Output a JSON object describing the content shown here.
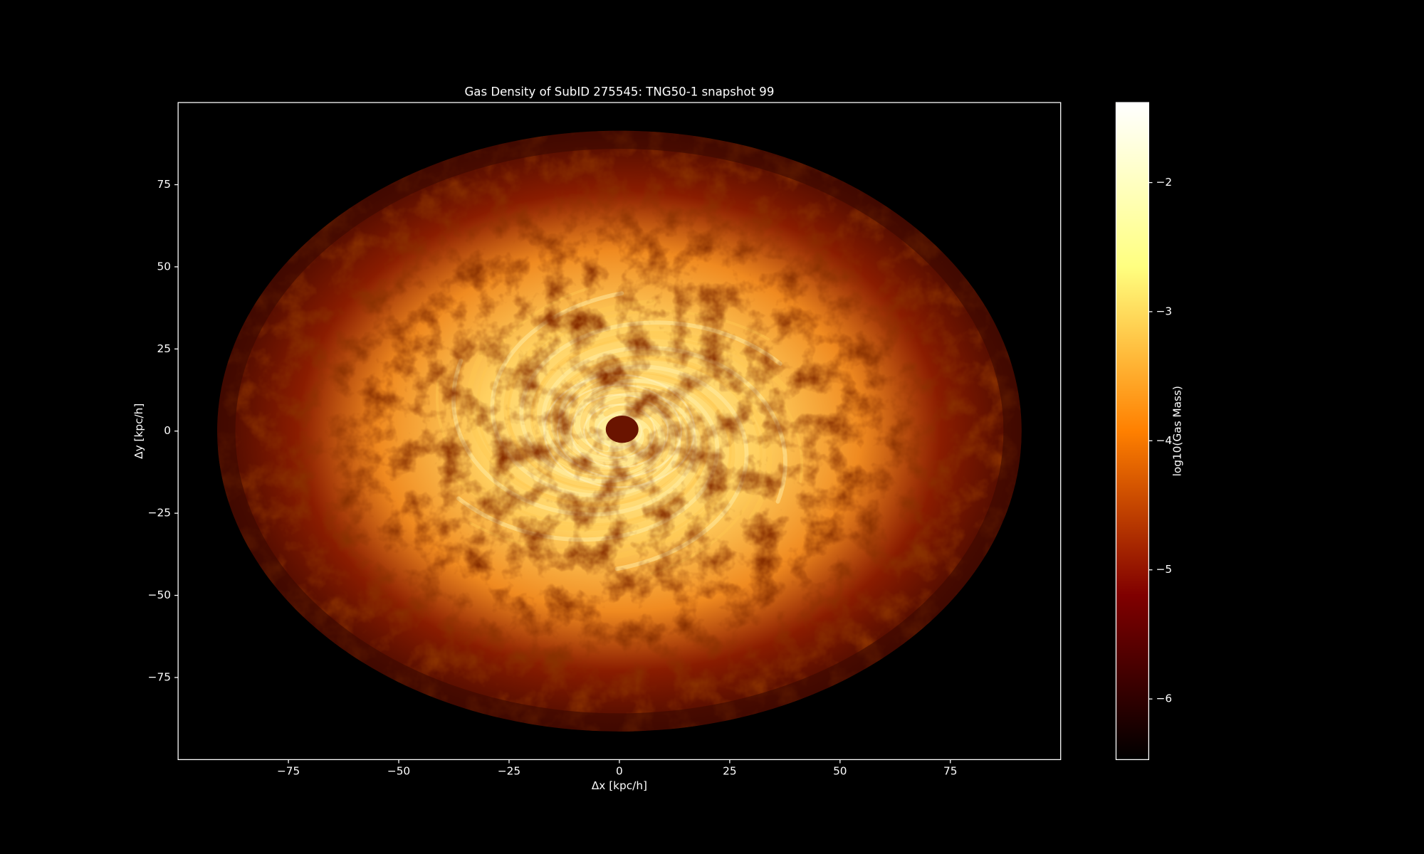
{
  "chart_data": {
    "type": "image",
    "title": "Gas Density of SubID 275545: TNG50-1 snapshot 99",
    "xlabel": "Δx [kpc/h]",
    "ylabel": "Δy [kpc/h]",
    "xlim": [
      -100,
      100
    ],
    "ylim": [
      -100,
      100
    ],
    "xticks": [
      {
        "value": -75,
        "label": "−75"
      },
      {
        "value": -50,
        "label": "−50"
      },
      {
        "value": -25,
        "label": "−25"
      },
      0,
      25,
      50,
      75
    ],
    "yticks": [
      {
        "value": -75,
        "label": "−75"
      },
      {
        "value": -50,
        "label": "−50"
      },
      {
        "value": -25,
        "label": "−25"
      },
      0,
      25,
      50,
      75
    ],
    "colormap": "afmhot",
    "colorbar": {
      "label": "log10(Gas Mass)",
      "clim": [
        -6.47,
        -1.38
      ],
      "ticks": [
        {
          "value": -2,
          "label": "−2"
        },
        {
          "value": -3,
          "label": "−3"
        },
        {
          "value": -4,
          "label": "−4"
        },
        {
          "value": -5,
          "label": "−5"
        },
        {
          "value": -6,
          "label": "−6"
        }
      ]
    }
  }
}
